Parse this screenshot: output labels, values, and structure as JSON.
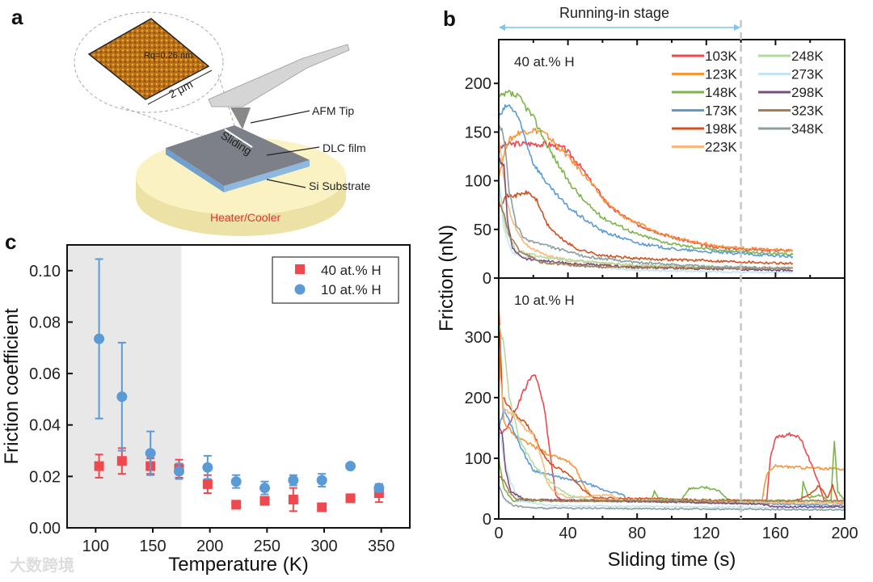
{
  "panel_a": {
    "label": "a",
    "roughness": "Rq=0.26 nm",
    "scale": "2 μm",
    "afm_tip": "AFM Tip",
    "sliding": "Sliding",
    "dlc_film": "DLC film",
    "si_substrate": "Si Substrate",
    "heater": "Heater/Cooler"
  },
  "watermark": "大数跨境",
  "chart_data": [
    {
      "id": "b",
      "panel_label": "b",
      "type": "line",
      "annotation": "Running-in stage",
      "running_in_end": 140,
      "xlabel": "Sliding time (s)",
      "ylabel": "Friction (nN)",
      "xlim": [
        0,
        200
      ],
      "xticks": [
        0,
        40,
        80,
        120,
        160,
        200
      ],
      "colors": {
        "103K": "#f0484f",
        "123K": "#f7953a",
        "148K": "#7cb548",
        "173K": "#5b9bd5",
        "198K": "#d4501f",
        "223K": "#f9b97c",
        "248K": "#b2dba1",
        "273K": "#c5e4f3",
        "298K": "#7b4f7c",
        "323K": "#a67c52",
        "348K": "#8c9ea0"
      },
      "legend": [
        "103K",
        "123K",
        "148K",
        "173K",
        "198K",
        "223K",
        "248K",
        "273K",
        "298K",
        "323K",
        "348K"
      ],
      "subplots": [
        {
          "title": "40 at.% H",
          "ylim": [
            0,
            245
          ],
          "yticks": [
            0,
            50,
            100,
            150,
            200
          ],
          "series": [
            {
              "name": "103K",
              "x": [
                0,
                3,
                10,
                20,
                30,
                38,
                45,
                55,
                65,
                80,
                100,
                120,
                140,
                170
              ],
              "y": [
                130,
                137,
                138,
                138,
                137,
                133,
                120,
                95,
                72,
                55,
                42,
                33,
                30,
                28
              ]
            },
            {
              "name": "123K",
              "x": [
                0,
                5,
                12,
                20,
                25,
                30,
                40,
                50,
                60,
                70,
                90,
                110,
                130,
                150,
                170
              ],
              "y": [
                105,
                140,
                150,
                152,
                150,
                143,
                125,
                105,
                82,
                65,
                48,
                38,
                32,
                30,
                28
              ]
            },
            {
              "name": "148K",
              "x": [
                0,
                6,
                12,
                20,
                30,
                40,
                50,
                60,
                80,
                100,
                120,
                140,
                170
              ],
              "y": [
                185,
                190,
                185,
                165,
                130,
                100,
                78,
                62,
                45,
                35,
                30,
                27,
                24
              ]
            },
            {
              "name": "173K",
              "x": [
                0,
                5,
                10,
                15,
                20,
                30,
                40,
                50,
                60,
                80,
                100,
                120,
                140,
                170
              ],
              "y": [
                165,
                178,
                170,
                145,
                118,
                92,
                73,
                60,
                48,
                36,
                30,
                27,
                25,
                22
              ]
            },
            {
              "name": "198K",
              "x": [
                0,
                5,
                10,
                17,
                22,
                28,
                35,
                45,
                60,
                80,
                120,
                170
              ],
              "y": [
                75,
                84,
                85,
                88,
                80,
                55,
                42,
                30,
                23,
                20,
                18,
                15
              ]
            },
            {
              "name": "223K",
              "x": [
                0,
                5,
                10,
                15,
                25,
                40,
                80,
                170
              ],
              "y": [
                145,
                75,
                50,
                35,
                25,
                18,
                12,
                10
              ]
            },
            {
              "name": "248K",
              "x": [
                0,
                4,
                10,
                30,
                80,
                170
              ],
              "y": [
                100,
                50,
                28,
                20,
                13,
                10
              ]
            },
            {
              "name": "273K",
              "x": [
                0,
                3,
                8,
                30,
                80,
                140,
                170
              ],
              "y": [
                95,
                50,
                25,
                15,
                8,
                6,
                6
              ]
            },
            {
              "name": "298K",
              "x": [
                0,
                3,
                5,
                8,
                15,
                40,
                80,
                170
              ],
              "y": [
                122,
                115,
                60,
                30,
                20,
                15,
                11,
                8
              ]
            },
            {
              "name": "323K",
              "x": [
                0,
                3,
                6,
                12,
                25,
                50,
                100,
                170
              ],
              "y": [
                80,
                65,
                45,
                28,
                16,
                12,
                10,
                10
              ]
            },
            {
              "name": "348K",
              "x": [
                0,
                3,
                6,
                10,
                15,
                30,
                50,
                80,
                120,
                170
              ],
              "y": [
                160,
                145,
                90,
                55,
                40,
                32,
                22,
                16,
                12,
                10
              ]
            }
          ]
        },
        {
          "title": "10 at.% H",
          "ylim": [
            0,
            397
          ],
          "yticks": [
            0,
            100,
            200,
            300
          ],
          "series": [
            {
              "name": "103K",
              "x": [
                0,
                5,
                10,
                15,
                20,
                23,
                27,
                30,
                33,
                36,
                140,
                150,
                155,
                157,
                160,
                170,
                175,
                185,
                188,
                200
              ],
              "y": [
                140,
                150,
                180,
                215,
                238,
                225,
                170,
                100,
                40,
                30,
                28,
                30,
                32,
                100,
                135,
                140,
                130,
                60,
                30,
                25
              ]
            },
            {
              "name": "123K",
              "x": [
                0,
                3,
                10,
                20,
                30,
                40,
                45,
                50,
                56,
                100,
                140,
                152,
                155,
                160,
                180,
                200
              ],
              "y": [
                280,
                160,
                135,
                120,
                105,
                95,
                80,
                50,
                30,
                28,
                28,
                28,
                75,
                87,
                84,
                82
              ]
            },
            {
              "name": "148K",
              "x": [
                0,
                3,
                8,
                88,
                90,
                92,
                105,
                110,
                120,
                128,
                133,
                175,
                176,
                179,
                185,
                192,
                194,
                196,
                200
              ],
              "y": [
                100,
                50,
                30,
                30,
                45,
                35,
                30,
                50,
                52,
                45,
                30,
                30,
                60,
                35,
                40,
                28,
                128,
                45,
                30
              ]
            },
            {
              "name": "173K",
              "x": [
                0,
                3,
                8,
                15,
                20,
                30,
                40,
                50,
                60,
                72,
                74,
                200
              ],
              "y": [
                150,
                180,
                150,
                105,
                80,
                72,
                65,
                60,
                48,
                40,
                30,
                22
              ]
            },
            {
              "name": "198K",
              "x": [
                0,
                2,
                5,
                10,
                15,
                20,
                25,
                30,
                40,
                50,
                55,
                150,
                170,
                180,
                185,
                190,
                193,
                196,
                200
              ],
              "y": [
                360,
                200,
                190,
                170,
                160,
                140,
                110,
                90,
                75,
                45,
                35,
                30,
                28,
                40,
                55,
                35,
                55,
                30,
                28
              ]
            },
            {
              "name": "223K",
              "x": [
                0,
                3,
                10,
                15,
                20,
                25,
                28,
                32,
                40,
                65,
                70,
                200
              ],
              "y": [
                250,
                180,
                170,
                150,
                140,
                100,
                60,
                45,
                35,
                40,
                30,
                25
              ]
            },
            {
              "name": "248K",
              "x": [
                0,
                3,
                6,
                12,
                20,
                30,
                40,
                50,
                200
              ],
              "y": [
                320,
                290,
                200,
                130,
                90,
                60,
                40,
                32,
                28
              ]
            },
            {
              "name": "273K",
              "x": [
                0,
                3,
                7,
                12,
                30,
                200
              ],
              "y": [
                150,
                100,
                60,
                30,
                22,
                18
              ]
            },
            {
              "name": "298K",
              "x": [
                0,
                2,
                4,
                7,
                15,
                100,
                150,
                160,
                200
              ],
              "y": [
                155,
                140,
                80,
                45,
                32,
                28,
                25,
                20,
                20
              ]
            },
            {
              "name": "323K",
              "x": [
                0,
                3,
                6,
                10,
                30,
                200
              ],
              "y": [
                70,
                65,
                45,
                33,
                30,
                30
              ]
            },
            {
              "name": "348K",
              "x": [
                0,
                3,
                8,
                20,
                200
              ],
              "y": [
                55,
                35,
                22,
                18,
                15
              ]
            }
          ]
        }
      ]
    },
    {
      "id": "c",
      "panel_label": "c",
      "type": "scatter",
      "xlabel": "Temperature (K)",
      "ylabel": "Friction coefficient",
      "xlim": [
        75,
        375
      ],
      "ylim": [
        0,
        0.11
      ],
      "xticks": [
        100,
        150,
        200,
        250,
        300,
        350
      ],
      "yticks": [
        "0.00",
        "0.02",
        "0.04",
        "0.06",
        "0.08",
        "0.10"
      ],
      "shaded_region": [
        75,
        175
      ],
      "legend_position": "top-right",
      "x": [
        103,
        123,
        148,
        173,
        198,
        223,
        248,
        273,
        298,
        323,
        348
      ],
      "series": [
        {
          "name": "40 at.% H",
          "marker": "square",
          "color": "#f0484f",
          "values": [
            0.024,
            0.026,
            0.024,
            0.023,
            0.017,
            0.009,
            0.0105,
            0.011,
            0.008,
            0.0115,
            0.0135
          ],
          "errors": [
            0.0045,
            0.005,
            0.003,
            0.0035,
            0.0035,
            0.001,
            0.0015,
            0.0045,
            0.001,
            0.001,
            0.0035
          ]
        },
        {
          "name": "10 at.% H",
          "marker": "circle",
          "color": "#5b9bd5",
          "values": [
            0.0735,
            0.051,
            0.029,
            0.022,
            0.0235,
            0.018,
            0.0155,
            0.0185,
            0.0185,
            0.024,
            0.0155
          ],
          "errors": [
            0.031,
            0.021,
            0.0085,
            0.003,
            0.0045,
            0.0025,
            0.0025,
            0.002,
            0.0025,
            0.001,
            0.0015
          ]
        }
      ]
    }
  ]
}
